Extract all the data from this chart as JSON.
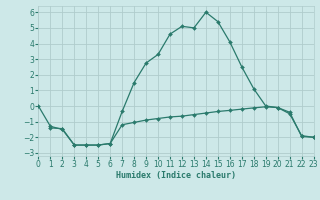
{
  "xlabel": "Humidex (Indice chaleur)",
  "line1_x": [
    0,
    1,
    2,
    3,
    4,
    5,
    6,
    7,
    8,
    9,
    10,
    11,
    12,
    13,
    14,
    15,
    16,
    17,
    18,
    19,
    20,
    21,
    22,
    23
  ],
  "line1_y": [
    0,
    -1.3,
    -1.5,
    -2.5,
    -2.5,
    -2.5,
    -2.4,
    -0.35,
    1.5,
    2.75,
    3.3,
    4.6,
    5.1,
    5.0,
    6.0,
    5.4,
    4.1,
    2.5,
    1.1,
    0.0,
    -0.1,
    -0.5,
    -1.9,
    -2.0
  ],
  "line2_x": [
    1,
    2,
    3,
    4,
    5,
    6,
    7,
    8,
    9,
    10,
    11,
    12,
    13,
    14,
    15,
    16,
    17,
    18,
    19,
    20,
    21,
    22,
    23
  ],
  "line2_y": [
    -1.4,
    -1.45,
    -2.5,
    -2.5,
    -2.5,
    -2.4,
    -1.2,
    -1.05,
    -0.9,
    -0.8,
    -0.7,
    -0.65,
    -0.55,
    -0.45,
    -0.35,
    -0.28,
    -0.2,
    -0.12,
    -0.05,
    -0.1,
    -0.4,
    -1.95,
    -2.0
  ],
  "line_color": "#2a7a6c",
  "bg_color": "#cde8e8",
  "grid_color": "#b0cccc",
  "xlim": [
    0,
    23
  ],
  "ylim": [
    -3.2,
    6.4
  ],
  "yticks": [
    -3,
    -2,
    -1,
    0,
    1,
    2,
    3,
    4,
    5,
    6
  ],
  "xticks": [
    0,
    1,
    2,
    3,
    4,
    5,
    6,
    7,
    8,
    9,
    10,
    11,
    12,
    13,
    14,
    15,
    16,
    17,
    18,
    19,
    20,
    21,
    22,
    23
  ],
  "markersize": 2.0,
  "linewidth": 0.9,
  "tick_fontsize": 5.5,
  "xlabel_fontsize": 6.0
}
